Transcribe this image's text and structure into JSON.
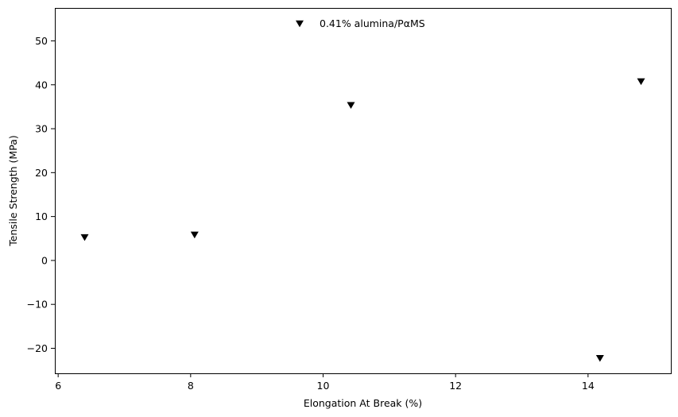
{
  "chart_data": {
    "type": "scatter",
    "xlabel": "Elongation At Break (%)",
    "ylabel": "Tensile Strength (MPa)",
    "xlim": [
      5.95,
      15.25
    ],
    "ylim": [
      -25.7,
      57.5
    ],
    "xticks": [
      6,
      8,
      10,
      12,
      14
    ],
    "yticks": [
      -20,
      -10,
      0,
      10,
      20,
      30,
      40,
      50
    ],
    "xtick_labels": [
      "6",
      "8",
      "10",
      "12",
      "14"
    ],
    "ytick_labels": [
      "−20",
      "−10",
      "0",
      "10",
      "20",
      "30",
      "40",
      "50"
    ],
    "grid": false,
    "legend_position": "upper center",
    "series": [
      {
        "name": "0.41% alumina/PαMS",
        "marker": "triangle-down",
        "color": "#000000",
        "points": [
          {
            "x": 6.4,
            "y": 5.2
          },
          {
            "x": 8.06,
            "y": 5.8
          },
          {
            "x": 10.42,
            "y": 35.3
          },
          {
            "x": 14.18,
            "y": -22.3
          },
          {
            "x": 14.8,
            "y": 40.7
          }
        ]
      }
    ]
  }
}
